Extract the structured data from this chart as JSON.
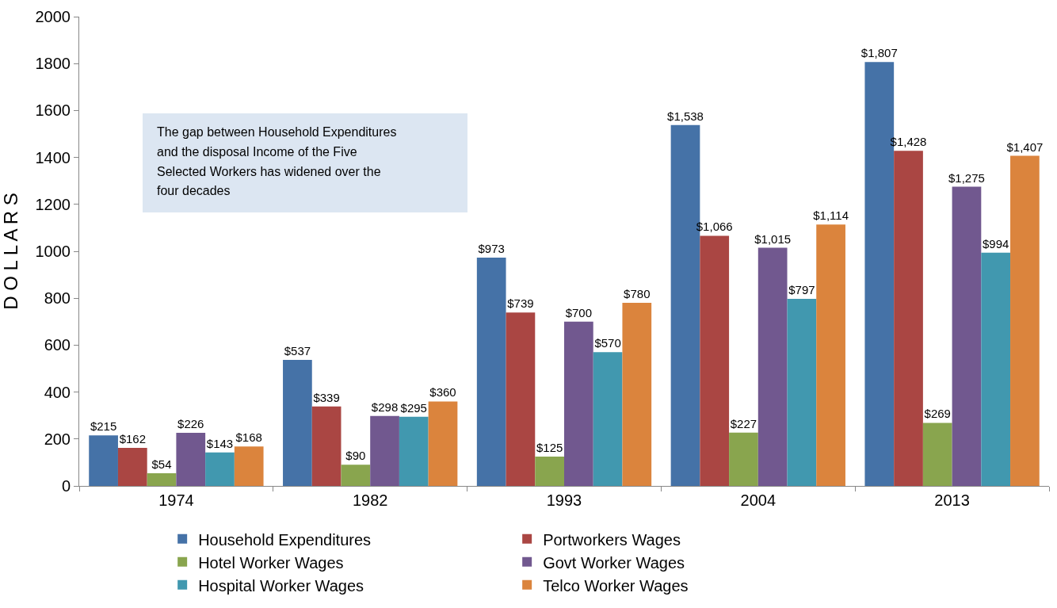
{
  "chart_data": {
    "type": "bar",
    "ylabel": "D O L L A R S",
    "categories": [
      "1974",
      "1982",
      "1993",
      "2004",
      "2013"
    ],
    "series": [
      {
        "name": "Household Expenditures",
        "color": "#4572a7",
        "values": [
          215,
          537,
          973,
          1538,
          1807
        ],
        "value_labels": [
          "$215",
          "$537",
          "$973",
          "$1,538",
          "$1,807"
        ]
      },
      {
        "name": "Portworkers Wages",
        "color": "#aa4643",
        "values": [
          162,
          339,
          739,
          1066,
          1428
        ],
        "value_labels": [
          "$162",
          "$339",
          "$739",
          "$1,066",
          "$1,428"
        ]
      },
      {
        "name": "Hotel Worker Wages",
        "color": "#89a54e",
        "values": [
          54,
          90,
          125,
          227,
          269
        ],
        "value_labels": [
          "$54",
          "$90",
          "$125",
          "$227",
          "$269"
        ]
      },
      {
        "name": "Govt Worker Wages",
        "color": "#71588f",
        "values": [
          226,
          298,
          700,
          1015,
          1275
        ],
        "value_labels": [
          "$226",
          "$298",
          "$700",
          "$1,015",
          "$1,275"
        ]
      },
      {
        "name": "Hospital Worker Wages",
        "color": "#4198af",
        "values": [
          143,
          295,
          570,
          797,
          994
        ],
        "value_labels": [
          "$143",
          "$295",
          "$570",
          "$797",
          "$994"
        ]
      },
      {
        "name": "Telco Worker Wages",
        "color": "#db843d",
        "values": [
          168,
          360,
          780,
          1114,
          1407
        ],
        "value_labels": [
          "$168",
          "$360",
          "$780",
          "$1,114",
          "$1,407"
        ]
      }
    ],
    "ylim": [
      0,
      2000
    ],
    "yticks": [
      0,
      200,
      400,
      600,
      800,
      1000,
      1200,
      1400,
      1600,
      1800,
      2000
    ],
    "grid": false,
    "legend": "bottom",
    "annotations": [
      "The gap between Household Expenditures and the disposal Income of the Five Selected Workers has widened over the four decades"
    ]
  }
}
